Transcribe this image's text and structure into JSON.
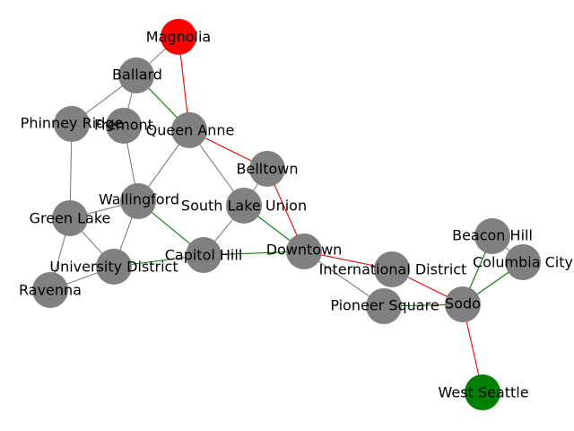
{
  "graph": {
    "type": "network",
    "colors": {
      "default_node": "#808080",
      "start_node": "#ff0000",
      "end_node": "#008000",
      "default_edge": "#808080",
      "path_edge_red": "#ff0000",
      "path_edge_green": "#008000"
    },
    "nodes": [
      {
        "id": "magnolia",
        "label": "Magnolia",
        "role": "start"
      },
      {
        "id": "ballard",
        "label": "Ballard",
        "role": "normal"
      },
      {
        "id": "phinney_ridge",
        "label": "Phinney Ridge",
        "role": "normal"
      },
      {
        "id": "fremont",
        "label": "Fremont",
        "role": "normal"
      },
      {
        "id": "queen_anne",
        "label": "Queen Anne",
        "role": "normal"
      },
      {
        "id": "belltown",
        "label": "Belltown",
        "role": "normal"
      },
      {
        "id": "wallingford",
        "label": "Wallingford",
        "role": "normal"
      },
      {
        "id": "south_lake_union",
        "label": "South Lake Union",
        "role": "normal"
      },
      {
        "id": "green_lake",
        "label": "Green Lake",
        "role": "normal"
      },
      {
        "id": "capitol_hill",
        "label": "Capitol Hill",
        "role": "normal"
      },
      {
        "id": "downtown",
        "label": "Downtown",
        "role": "normal"
      },
      {
        "id": "university_district",
        "label": "University District",
        "role": "normal"
      },
      {
        "id": "ravenna",
        "label": "Ravenna",
        "role": "normal"
      },
      {
        "id": "international_district",
        "label": "International District",
        "role": "normal"
      },
      {
        "id": "pioneer_square",
        "label": "Pioneer Square",
        "role": "normal"
      },
      {
        "id": "sodo",
        "label": "Sodo",
        "role": "normal"
      },
      {
        "id": "beacon_hill",
        "label": "Beacon Hill",
        "role": "normal"
      },
      {
        "id": "columbia_city",
        "label": "Columbia City",
        "role": "normal"
      },
      {
        "id": "west_seattle",
        "label": "West Seattle",
        "role": "end"
      }
    ],
    "edges": [
      {
        "source": "magnolia",
        "target": "ballard",
        "style": "default"
      },
      {
        "source": "magnolia",
        "target": "queen_anne",
        "style": "red"
      },
      {
        "source": "ballard",
        "target": "phinney_ridge",
        "style": "default"
      },
      {
        "source": "ballard",
        "target": "fremont",
        "style": "default"
      },
      {
        "source": "ballard",
        "target": "queen_anne",
        "style": "green"
      },
      {
        "source": "phinney_ridge",
        "target": "green_lake",
        "style": "default"
      },
      {
        "source": "fremont",
        "target": "wallingford",
        "style": "default"
      },
      {
        "source": "queen_anne",
        "target": "belltown",
        "style": "red"
      },
      {
        "source": "queen_anne",
        "target": "wallingford",
        "style": "default"
      },
      {
        "source": "queen_anne",
        "target": "south_lake_union",
        "style": "default"
      },
      {
        "source": "belltown",
        "target": "south_lake_union",
        "style": "default"
      },
      {
        "source": "belltown",
        "target": "downtown",
        "style": "red"
      },
      {
        "source": "wallingford",
        "target": "green_lake",
        "style": "default"
      },
      {
        "source": "wallingford",
        "target": "university_district",
        "style": "default"
      },
      {
        "source": "wallingford",
        "target": "capitol_hill",
        "style": "green"
      },
      {
        "source": "south_lake_union",
        "target": "capitol_hill",
        "style": "default"
      },
      {
        "source": "south_lake_union",
        "target": "downtown",
        "style": "green"
      },
      {
        "source": "green_lake",
        "target": "university_district",
        "style": "default"
      },
      {
        "source": "green_lake",
        "target": "ravenna",
        "style": "default"
      },
      {
        "source": "university_district",
        "target": "ravenna",
        "style": "default"
      },
      {
        "source": "university_district",
        "target": "capitol_hill",
        "style": "green"
      },
      {
        "source": "capitol_hill",
        "target": "downtown",
        "style": "green"
      },
      {
        "source": "downtown",
        "target": "international_district",
        "style": "red"
      },
      {
        "source": "downtown",
        "target": "pioneer_square",
        "style": "default"
      },
      {
        "source": "international_district",
        "target": "sodo",
        "style": "red"
      },
      {
        "source": "pioneer_square",
        "target": "sodo",
        "style": "green"
      },
      {
        "source": "sodo",
        "target": "beacon_hill",
        "style": "green"
      },
      {
        "source": "sodo",
        "target": "columbia_city",
        "style": "green"
      },
      {
        "source": "beacon_hill",
        "target": "columbia_city",
        "style": "default"
      },
      {
        "source": "sodo",
        "target": "west_seattle",
        "style": "red"
      }
    ]
  }
}
